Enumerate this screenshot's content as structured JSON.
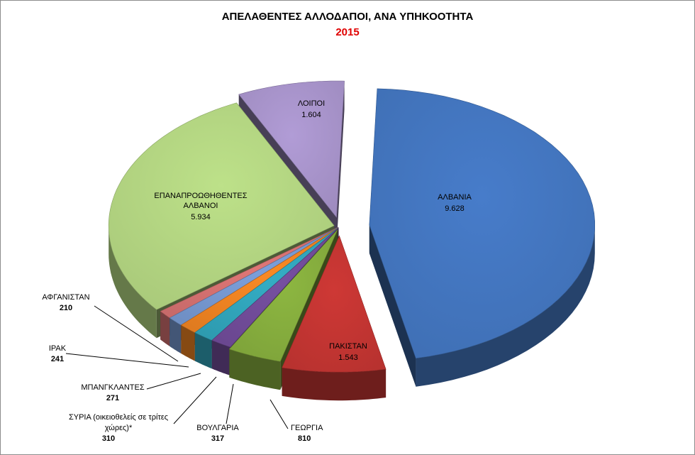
{
  "chart_data": {
    "type": "pie",
    "title": "ΑΠΕΛΑΘΕΝΤΕΣ ΑΛΛΟΔΑΠΟΙ, ΑΝΑ ΥΠΗΚΟΟΤΗΤΑ",
    "subtitle": "2015",
    "style": "3d-exploded",
    "slices": [
      {
        "id": "albania",
        "label": "ΑΛΒΑΝΙΑ",
        "value": 9628,
        "value_text": "9.628",
        "color": "#3f6fb4"
      },
      {
        "id": "pakistan",
        "label": "ΠΑΚΙΣΤΑΝ",
        "value": 1543,
        "value_text": "1.543",
        "color": "#b8322f"
      },
      {
        "id": "georgia",
        "label": "ΓΕΩΡΓΙΑ",
        "value": 810,
        "value_text": "810",
        "color": "#7ea33a"
      },
      {
        "id": "bulgaria",
        "label": "ΒΟΥΛΓΑΡΙΑ",
        "value": 317,
        "value_text": "317",
        "color": "#6a4790"
      },
      {
        "id": "syria",
        "label": "ΣΥΡΙΑ (οικειοθελείς σε τρίτες χώρες)*",
        "label_lines": [
          "ΣΥΡΙΑ (οικειοθελείς σε τρίτες",
          "χώρες)*"
        ],
        "value": 310,
        "value_text": "310",
        "color": "#2e9bb0"
      },
      {
        "id": "bangladesh",
        "label": "ΜΠΑΝΓΚΛΑΝΤΕΣ",
        "value": 271,
        "value_text": "271",
        "color": "#e07b20"
      },
      {
        "id": "iraq",
        "label": "ΙΡΑΚ",
        "value": 241,
        "value_text": "241",
        "color": "#6f8fc4"
      },
      {
        "id": "afghanistan",
        "label": "ΑΦΓΑΝΙΣΤΑΝ",
        "value": 210,
        "value_text": "210",
        "color": "#c86a6a"
      },
      {
        "id": "readmitted-albanians",
        "label": "ΕΠΑΝΑΠΡΟΩΘΗΘΕΝΤΕΣ ΑΛΒΑΝΟΙ",
        "label_lines": [
          "ΕΠΑΝΑΠΡΟΩΘΗΘΕΝΤΕΣ",
          "ΑΛΒΑΝΟΙ"
        ],
        "value": 5934,
        "value_text": "5.934",
        "color": "#a9c97a"
      },
      {
        "id": "others",
        "label": "ΛΟΙΠΟΙ",
        "value": 1604,
        "value_text": "1.604",
        "color": "#9e8bbf"
      }
    ]
  }
}
